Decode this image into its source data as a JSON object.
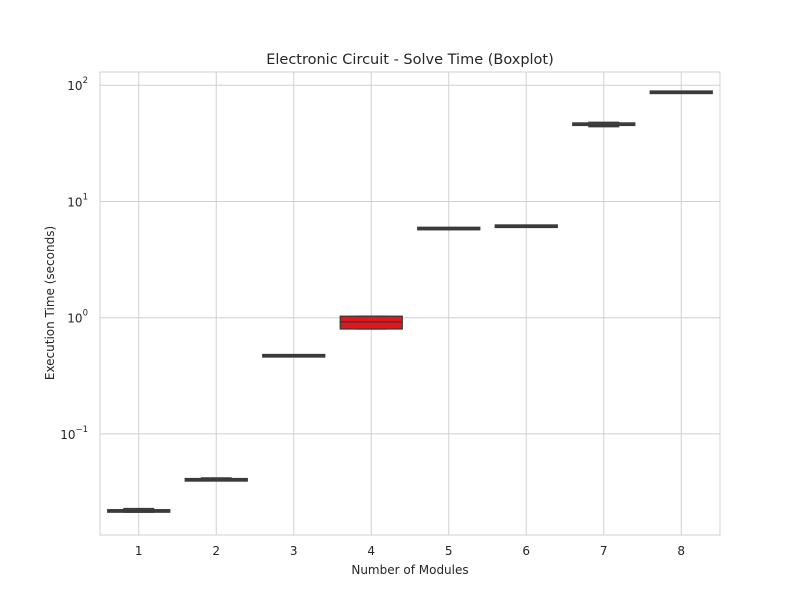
{
  "chart_data": {
    "type": "box",
    "title": "Electronic Circuit - Solve Time (Boxplot)",
    "xlabel": "Number of Modules",
    "ylabel": "Execution Time (seconds)",
    "yscale": "log",
    "ylim": [
      0.0135,
      130
    ],
    "grid": true,
    "categories": [
      "1",
      "2",
      "3",
      "4",
      "5",
      "6",
      "7",
      "8"
    ],
    "y_ticks": [
      {
        "value": 0.1,
        "base": "10",
        "exp": "−1"
      },
      {
        "value": 1,
        "base": "10",
        "exp": "0"
      },
      {
        "value": 10,
        "base": "10",
        "exp": "1"
      },
      {
        "value": 100,
        "base": "10",
        "exp": "2"
      }
    ],
    "box_color": "#e8141c",
    "boxes": [
      {
        "category": "1",
        "whisker_low": 0.0212,
        "q1": 0.0213,
        "median": 0.0218,
        "q3": 0.0222,
        "whisker_high": 0.0228
      },
      {
        "category": "2",
        "whisker_low": 0.0398,
        "q1": 0.0398,
        "median": 0.0402,
        "q3": 0.0408,
        "whisker_high": 0.0418
      },
      {
        "category": "3",
        "whisker_low": 0.468,
        "q1": 0.469,
        "median": 0.47,
        "q3": 0.472,
        "whisker_high": 0.473
      },
      {
        "category": "4",
        "whisker_low": 0.8,
        "q1": 0.8,
        "median": 0.92,
        "q3": 1.03,
        "whisker_high": 1.03
      },
      {
        "category": "5",
        "whisker_low": 5.75,
        "q1": 5.8,
        "median": 5.85,
        "q3": 5.9,
        "whisker_high": 5.95
      },
      {
        "category": "6",
        "whisker_low": 6.05,
        "q1": 6.1,
        "median": 6.12,
        "q3": 6.15,
        "whisker_high": 6.2
      },
      {
        "category": "7",
        "whisker_low": 44,
        "q1": 45.5,
        "median": 46,
        "q3": 47,
        "whisker_high": 48
      },
      {
        "category": "8",
        "whisker_low": 86,
        "q1": 86.5,
        "median": 87,
        "q3": 87.5,
        "whisker_high": 88
      }
    ]
  }
}
